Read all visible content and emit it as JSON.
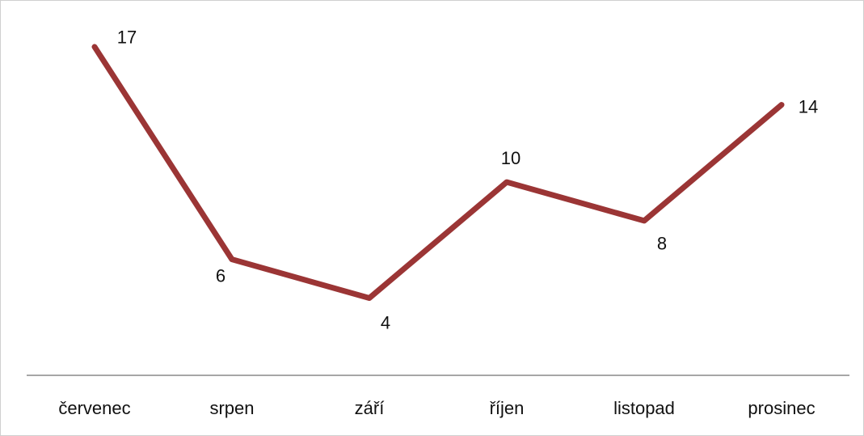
{
  "chart_data": {
    "type": "line",
    "categories": [
      "červenec",
      "srpen",
      "září",
      "říjen",
      "listopad",
      "prosinec"
    ],
    "series": [
      {
        "color": "#9b3535",
        "values": [
          17,
          6,
          4,
          10,
          8,
          14
        ]
      }
    ],
    "ylim": [
      0,
      18
    ]
  }
}
